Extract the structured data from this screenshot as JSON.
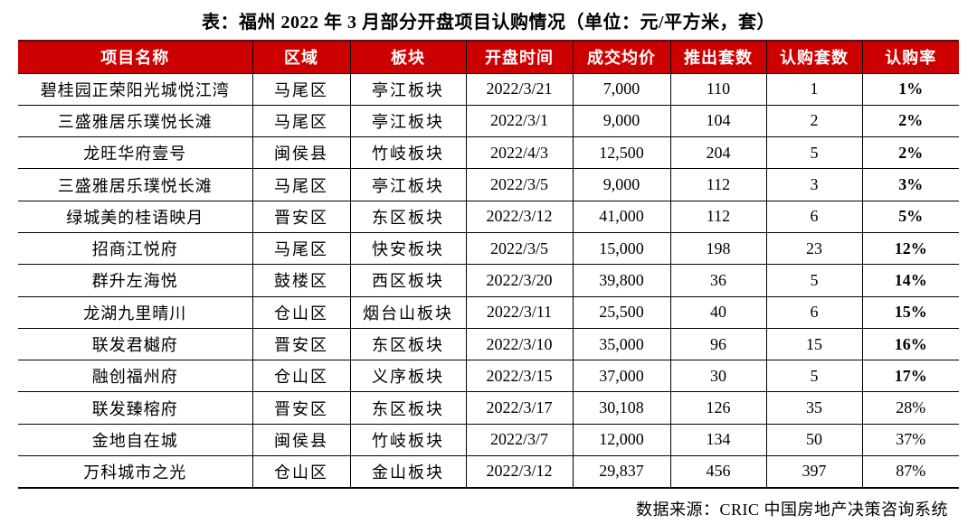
{
  "title": "表：福州 2022 年 3 月部分开盘项目认购情况（单位：元/平方米，套）",
  "source": "数据来源：CRIC 中国房地产决策咨询系统",
  "colors": {
    "header_bg": "#CC0000",
    "header_text": "#FFFFFF",
    "border": "#000000",
    "header_top_line": "#5A0E0E",
    "page_bg": "#FFFFFF"
  },
  "table": {
    "headers": [
      "项目名称",
      "区域",
      "板块",
      "开盘时间",
      "成交均价",
      "推出套数",
      "认购套数",
      "认购率"
    ],
    "rows": [
      {
        "cells": [
          "碧桂园正荣阳光城悦江湾",
          "马尾区",
          "亭江板块",
          "2022/3/21",
          "7,000",
          "110",
          "1",
          "1%"
        ],
        "rate_bold": true
      },
      {
        "cells": [
          "三盛雅居乐璞悦长滩",
          "马尾区",
          "亭江板块",
          "2022/3/1",
          "9,000",
          "104",
          "2",
          "2%"
        ],
        "rate_bold": true
      },
      {
        "cells": [
          "龙旺华府壹号",
          "闽侯县",
          "竹岐板块",
          "2022/4/3",
          "12,500",
          "204",
          "5",
          "2%"
        ],
        "rate_bold": true
      },
      {
        "cells": [
          "三盛雅居乐璞悦长滩",
          "马尾区",
          "亭江板块",
          "2022/3/5",
          "9,000",
          "112",
          "3",
          "3%"
        ],
        "rate_bold": true
      },
      {
        "cells": [
          "绿城美的桂语映月",
          "晋安区",
          "东区板块",
          "2022/3/12",
          "41,000",
          "112",
          "6",
          "5%"
        ],
        "rate_bold": true
      },
      {
        "cells": [
          "招商江悦府",
          "马尾区",
          "快安板块",
          "2022/3/5",
          "15,000",
          "198",
          "23",
          "12%"
        ],
        "rate_bold": true
      },
      {
        "cells": [
          "群升左海悦",
          "鼓楼区",
          "西区板块",
          "2022/3/20",
          "39,800",
          "36",
          "5",
          "14%"
        ],
        "rate_bold": true
      },
      {
        "cells": [
          "龙湖九里晴川",
          "仓山区",
          "烟台山板块",
          "2022/3/11",
          "25,500",
          "40",
          "6",
          "15%"
        ],
        "rate_bold": true
      },
      {
        "cells": [
          "联发君樾府",
          "晋安区",
          "东区板块",
          "2022/3/10",
          "35,000",
          "96",
          "15",
          "16%"
        ],
        "rate_bold": true
      },
      {
        "cells": [
          "融创福州府",
          "仓山区",
          "义序板块",
          "2022/3/15",
          "37,000",
          "30",
          "5",
          "17%"
        ],
        "rate_bold": true
      },
      {
        "cells": [
          "联发臻榕府",
          "晋安区",
          "东区板块",
          "2022/3/17",
          "30,108",
          "126",
          "35",
          "28%"
        ],
        "rate_bold": false
      },
      {
        "cells": [
          "金地自在城",
          "闽侯县",
          "竹岐板块",
          "2022/3/7",
          "12,000",
          "134",
          "50",
          "37%"
        ],
        "rate_bold": false
      },
      {
        "cells": [
          "万科城市之光",
          "仓山区",
          "金山板块",
          "2022/3/12",
          "29,837",
          "456",
          "397",
          "87%"
        ],
        "rate_bold": false
      }
    ]
  },
  "chart_data": {
    "type": "table",
    "title": "表：福州 2022 年 3 月部分开盘项目认购情况（单位：元/平方米，套）",
    "columns": [
      "项目名称",
      "区域",
      "板块",
      "开盘时间",
      "成交均价",
      "推出套数",
      "认购套数",
      "认购率"
    ],
    "rows": [
      [
        "碧桂园正荣阳光城悦江湾",
        "马尾区",
        "亭江板块",
        "2022/3/21",
        7000,
        110,
        1,
        "1%"
      ],
      [
        "三盛雅居乐璞悦长滩",
        "马尾区",
        "亭江板块",
        "2022/3/1",
        9000,
        104,
        2,
        "2%"
      ],
      [
        "龙旺华府壹号",
        "闽侯县",
        "竹岐板块",
        "2022/4/3",
        12500,
        204,
        5,
        "2%"
      ],
      [
        "三盛雅居乐璞悦长滩",
        "马尾区",
        "亭江板块",
        "2022/3/5",
        9000,
        112,
        3,
        "3%"
      ],
      [
        "绿城美的桂语映月",
        "晋安区",
        "东区板块",
        "2022/3/12",
        41000,
        112,
        6,
        "5%"
      ],
      [
        "招商江悦府",
        "马尾区",
        "快安板块",
        "2022/3/5",
        15000,
        198,
        23,
        "12%"
      ],
      [
        "群升左海悦",
        "鼓楼区",
        "西区板块",
        "2022/3/20",
        39800,
        36,
        5,
        "14%"
      ],
      [
        "龙湖九里晴川",
        "仓山区",
        "烟台山板块",
        "2022/3/11",
        25500,
        40,
        6,
        "15%"
      ],
      [
        "联发君樾府",
        "晋安区",
        "东区板块",
        "2022/3/10",
        35000,
        96,
        15,
        "16%"
      ],
      [
        "融创福州府",
        "仓山区",
        "义序板块",
        "2022/3/15",
        37000,
        30,
        5,
        "17%"
      ],
      [
        "联发臻榕府",
        "晋安区",
        "东区板块",
        "2022/3/17",
        30108,
        126,
        35,
        "28%"
      ],
      [
        "金地自在城",
        "闽侯县",
        "竹岐板块",
        "2022/3/7",
        12000,
        134,
        50,
        "37%"
      ],
      [
        "万科城市之光",
        "仓山区",
        "金山板块",
        "2022/3/12",
        29837,
        456,
        397,
        "87%"
      ]
    ],
    "source": "数据来源：CRIC 中国房地产决策咨询系统",
    "units": "元/平方米，套"
  }
}
